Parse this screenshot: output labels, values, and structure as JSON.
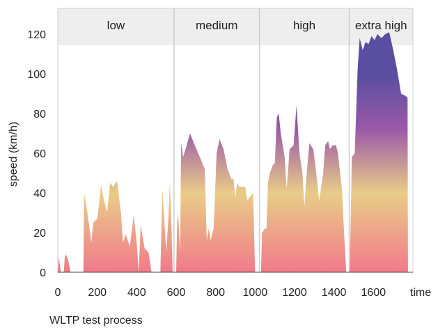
{
  "chart_data": {
    "type": "area",
    "caption": "WLTP test process",
    "xlabel": "time",
    "ylabel": "speed (km/h)",
    "xlim": [
      0,
      1800
    ],
    "ylim": [
      0,
      133
    ],
    "x_ticks": [
      0,
      200,
      400,
      600,
      800,
      1000,
      1200,
      1400,
      1600
    ],
    "y_ticks": [
      0,
      20,
      40,
      60,
      80,
      100,
      120
    ],
    "phases": [
      {
        "label": "low",
        "start": 0,
        "end": 589
      },
      {
        "label": "medium",
        "start": 589,
        "end": 1022
      },
      {
        "label": "high",
        "start": 1022,
        "end": 1477
      },
      {
        "label": "extra high",
        "start": 1477,
        "end": 1800
      }
    ],
    "gradient_colors": {
      "low": "#f07a8a",
      "mid": "#e9cc88",
      "upper": "#9b59a8",
      "top": "#5a4ea0"
    },
    "series": [
      {
        "x": [
          0,
          5,
          15,
          30,
          58
        ],
        "y": [
          0,
          8,
          0,
          0,
          0
        ]
      },
      {
        "x": [
          30,
          36,
          42,
          55,
          65
        ],
        "y": [
          0,
          8,
          9,
          5,
          0
        ]
      },
      {
        "x": [
          130,
          133,
          150,
          170,
          180,
          200,
          220,
          230,
          250,
          265,
          280,
          300,
          320,
          330,
          345,
          365,
          385,
          400,
          410,
          420,
          440,
          460,
          475
        ],
        "y": [
          0,
          40,
          30,
          15,
          25,
          27,
          44,
          38,
          30,
          45,
          43,
          46,
          30,
          15,
          19,
          13,
          29,
          15,
          0,
          24,
          12,
          10,
          0
        ]
      },
      {
        "x": [
          520,
          530,
          540,
          550,
          560,
          568,
          575,
          582
        ],
        "y": [
          0,
          42,
          26,
          10,
          27,
          45,
          28,
          0
        ]
      },
      {
        "x": [
          600,
          605,
          610,
          620,
          625,
          635,
          650,
          670,
          690,
          720,
          745,
          755,
          765,
          775,
          790,
          805,
          820,
          840,
          860,
          880,
          890,
          900,
          910,
          920,
          950,
          960,
          990,
          1000
        ],
        "y": [
          0,
          25,
          30,
          10,
          65,
          58,
          63,
          70,
          65,
          58,
          52,
          16,
          22,
          16,
          22,
          60,
          67,
          62,
          52,
          47,
          47,
          38,
          45,
          43,
          43,
          36,
          40,
          0
        ]
      },
      {
        "x": [
          1030,
          1035,
          1050,
          1058,
          1065,
          1075,
          1090,
          1100,
          1110,
          1120,
          1130,
          1150,
          1160,
          1175,
          1195,
          1210,
          1225,
          1240,
          1250,
          1260,
          1275,
          1295,
          1310,
          1325,
          1345,
          1355,
          1370,
          1380,
          1393,
          1410,
          1420,
          1440,
          1452,
          1462
        ],
        "y": [
          0,
          20,
          22,
          22,
          45,
          50,
          54,
          55,
          78,
          80,
          70,
          58,
          42,
          62,
          64,
          84,
          60,
          50,
          33,
          48,
          65,
          62,
          50,
          36,
          50,
          64,
          66,
          62,
          64,
          64,
          60,
          42,
          18,
          0
        ]
      },
      {
        "x": [
          1480,
          1490,
          1505,
          1520,
          1530,
          1545,
          1560,
          1575,
          1590,
          1605,
          1620,
          1640,
          1660,
          1680,
          1700,
          1720,
          1740,
          1760,
          1773,
          1775
        ],
        "y": [
          0,
          58,
          60,
          103,
          118,
          112,
          116,
          115,
          119,
          117,
          120,
          118,
          120,
          121,
          112,
          102,
          90,
          89,
          88,
          0
        ]
      }
    ]
  }
}
